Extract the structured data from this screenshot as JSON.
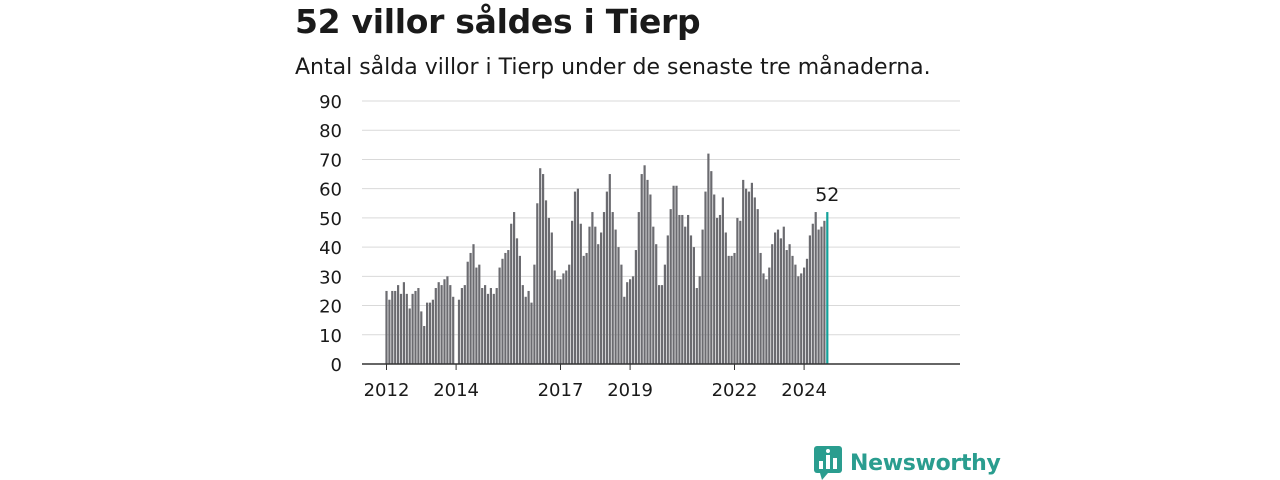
{
  "title": "52 villor såldes i Tierp",
  "subtitle": "Antal sålda villor i Tierp under de senaste tre månaderna.",
  "brand": {
    "name": "Newsworthy",
    "color": "#2a9d8f"
  },
  "colors": {
    "bar": "#6b6b70",
    "highlight": "#14a19a",
    "grid": "#d9d9d9",
    "axis": "#333333"
  },
  "chart_data": {
    "type": "bar",
    "title": "52 villor såldes i Tierp",
    "xlabel": "",
    "ylabel": "",
    "ylim": [
      0,
      90
    ],
    "yticks": [
      0,
      10,
      20,
      30,
      40,
      50,
      60,
      70,
      80,
      90
    ],
    "grid": true,
    "start": "2012-01",
    "frequency": "monthly",
    "xtick_labels": [
      {
        "label": "2012",
        "index": 0
      },
      {
        "label": "2014",
        "index": 24
      },
      {
        "label": "2017",
        "index": 60
      },
      {
        "label": "2019",
        "index": 84
      },
      {
        "label": "2022",
        "index": 120
      },
      {
        "label": "2024",
        "index": 144
      }
    ],
    "values": [
      25,
      22,
      25,
      25,
      27,
      24,
      28,
      24,
      19,
      24,
      25,
      26,
      18,
      13,
      21,
      21,
      22,
      26,
      28,
      27,
      29,
      30,
      27,
      23,
      0,
      22,
      26,
      27,
      35,
      38,
      41,
      33,
      34,
      26,
      27,
      24,
      26,
      24,
      26,
      33,
      36,
      38,
      39,
      48,
      52,
      43,
      37,
      27,
      23,
      25,
      21,
      34,
      55,
      67,
      65,
      56,
      50,
      45,
      32,
      29,
      29,
      31,
      32,
      34,
      49,
      59,
      60,
      48,
      37,
      38,
      47,
      52,
      47,
      41,
      45,
      52,
      59,
      65,
      52,
      46,
      40,
      34,
      23,
      28,
      29,
      30,
      39,
      52,
      65,
      68,
      63,
      58,
      47,
      41,
      27,
      27,
      34,
      44,
      53,
      61,
      61,
      51,
      51,
      47,
      51,
      44,
      40,
      26,
      30,
      46,
      59,
      72,
      66,
      58,
      50,
      51,
      57,
      45,
      37,
      37,
      38,
      50,
      49,
      63,
      60,
      59,
      62,
      57,
      53,
      38,
      31,
      29,
      33,
      41,
      45,
      46,
      43,
      47,
      39,
      41,
      37,
      34,
      30,
      31,
      33,
      36,
      44,
      48,
      52,
      46,
      47,
      49,
      52
    ],
    "highlight": {
      "index": 152,
      "label": "52",
      "value": 52
    }
  }
}
